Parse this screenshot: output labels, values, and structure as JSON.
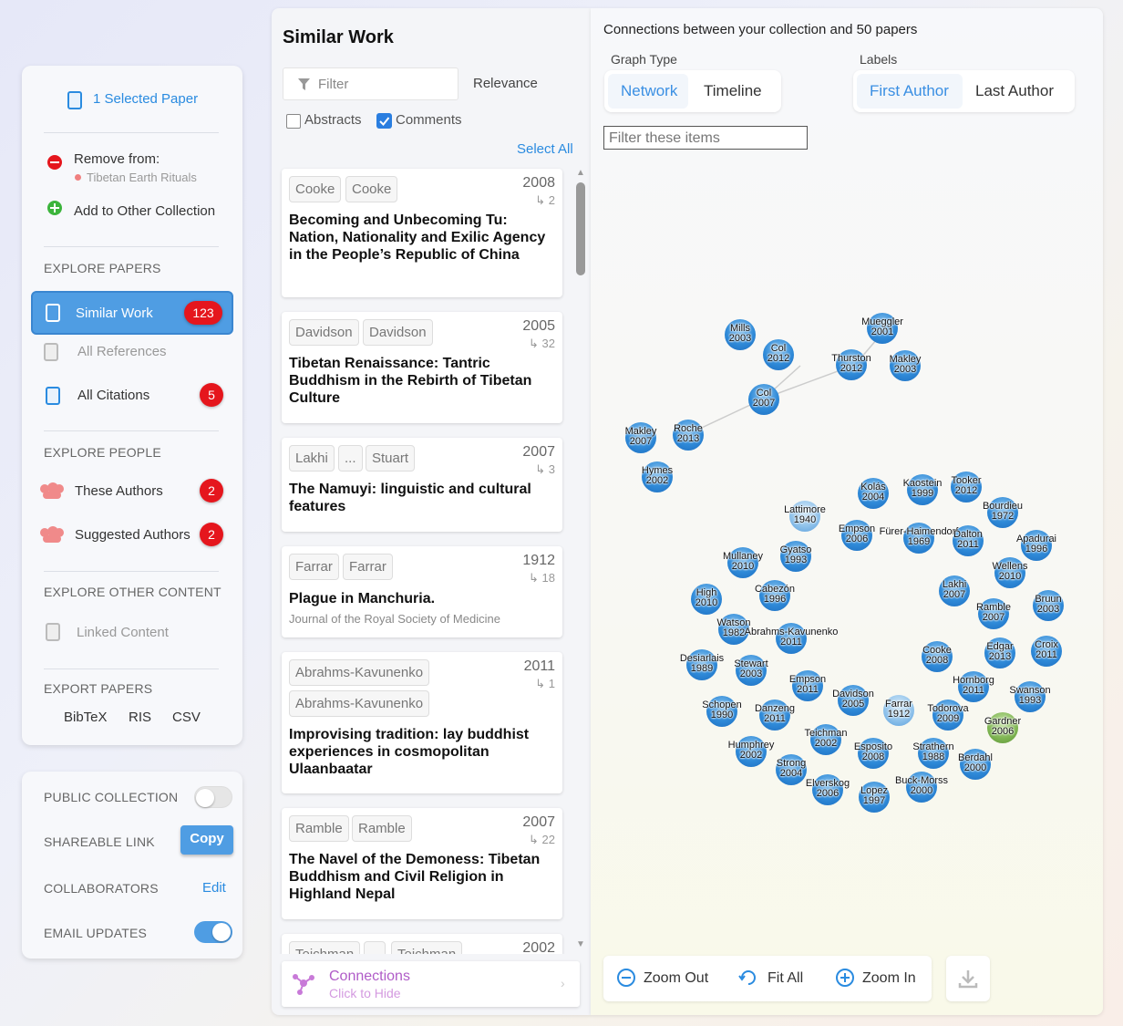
{
  "sidebar": {
    "selected_paper": "1 Selected Paper",
    "remove_from": "Remove from:",
    "collection_name": "Tibetan Earth Rituals",
    "add_to_other": "Add to Other Collection",
    "explore_papers": "EXPLORE PAPERS",
    "similar_work": "Similar Work",
    "similar_work_count": "123",
    "all_references": "All References",
    "all_citations": "All Citations",
    "all_citations_count": "5",
    "explore_people": "EXPLORE PEOPLE",
    "these_authors": "These Authors",
    "these_authors_count": "2",
    "suggested_authors": "Suggested Authors",
    "suggested_authors_count": "2",
    "explore_other": "EXPLORE OTHER CONTENT",
    "linked_content": "Linked Content",
    "export_papers": "EXPORT PAPERS",
    "bibtex": "BibTeX",
    "ris": "RIS",
    "csv": "CSV"
  },
  "settings": {
    "public_collection": "PUBLIC COLLECTION",
    "public_on": false,
    "shareable_link": "SHAREABLE LINK",
    "copy": "Copy",
    "collaborators": "COLLABORATORS",
    "edit": "Edit",
    "email_updates": "EMAIL UPDATES",
    "email_on": true
  },
  "list": {
    "title": "Similar Work",
    "filter_placeholder": "Filter",
    "sort": "Relevance",
    "abstracts": "Abstracts",
    "abstracts_checked": false,
    "comments": "Comments",
    "comments_checked": true,
    "select_all": "Select All",
    "papers": [
      {
        "authors": [
          "Cooke",
          "Cooke"
        ],
        "year": "2008",
        "cites": "2",
        "title": "Becoming and Unbecoming Tu: Nation, Nationality and Exilic Agency in the People’s Republic of China"
      },
      {
        "authors": [
          "Davidson",
          "Davidson"
        ],
        "year": "2005",
        "cites": "32",
        "title": "Tibetan Renaissance: Tantric Buddhism in the Rebirth of Tibetan Culture"
      },
      {
        "authors": [
          "Lakhi",
          "...",
          "Stuart"
        ],
        "year": "2007",
        "cites": "3",
        "title": "The Namuyi: linguistic and cultural features"
      },
      {
        "authors": [
          "Farrar",
          "Farrar"
        ],
        "year": "1912",
        "cites": "18",
        "title": "Plague in Manchuria.",
        "journal": "Journal of the Royal Society of Medicine"
      },
      {
        "authors": [
          "Abrahms-Kavunenko",
          "Abrahms-Kavunenko"
        ],
        "year": "2011",
        "cites": "1",
        "title": "Improvising tradition: lay buddhist experiences in cosmopolitan Ulaanbaatar"
      },
      {
        "authors": [
          "Ramble",
          "Ramble"
        ],
        "year": "2007",
        "cites": "22",
        "title": "The Navel of the Demoness: Tibetan Buddhism and Civil Religion in Highland Nepal"
      },
      {
        "authors": [
          "Teichman",
          "",
          "Teichman"
        ],
        "year": "2002",
        "cites": "",
        "title": ""
      }
    ],
    "connections": "Connections",
    "connections_sub": "Click to Hide"
  },
  "graph": {
    "header": "Connections between your collection and 50 papers",
    "graph_type_label": "Graph Type",
    "network": "Network",
    "timeline": "Timeline",
    "labels_label": "Labels",
    "first_author": "First Author",
    "last_author": "Last Author",
    "filter_placeholder": "Filter these items",
    "zoom_out": "Zoom Out",
    "fit_all": "Fit All",
    "zoom_in": "Zoom In",
    "nodes": [
      {
        "n": "Mills",
        "y": "2003"
      },
      {
        "n": "Col",
        "y": "2012"
      },
      {
        "n": "Mueggler",
        "y": "2001"
      },
      {
        "n": "Thurston",
        "y": "2012"
      },
      {
        "n": "Makley",
        "y": "2003"
      },
      {
        "n": "Col",
        "y": "2007"
      },
      {
        "n": "Makley",
        "y": "2007"
      },
      {
        "n": "Roche",
        "y": "2013"
      },
      {
        "n": "Hymes",
        "y": "2002"
      },
      {
        "n": "Kolás",
        "y": "2004"
      },
      {
        "n": "Kaostein",
        "y": "1999"
      },
      {
        "n": "Tooker",
        "y": "2012"
      },
      {
        "n": "Bourdieu",
        "y": "1972"
      },
      {
        "n": "Lattimore",
        "y": "1940"
      },
      {
        "n": "Empson",
        "y": "2006"
      },
      {
        "n": "Fürer-Haimendorf",
        "y": "1969"
      },
      {
        "n": "Dalton",
        "y": "2011"
      },
      {
        "n": "Apadurai",
        "y": "1996"
      },
      {
        "n": "Mullaney",
        "y": "2010"
      },
      {
        "n": "Gyatso",
        "y": "1993"
      },
      {
        "n": "Wellens",
        "y": "2010"
      },
      {
        "n": "High",
        "y": "2010"
      },
      {
        "n": "Cabezón",
        "y": "1996"
      },
      {
        "n": "Lakhi",
        "y": "2007"
      },
      {
        "n": "Bruun",
        "y": "2003"
      },
      {
        "n": "Ramble",
        "y": "2007"
      },
      {
        "n": "Watson",
        "y": "1982"
      },
      {
        "n": "Abrahms-Kavunenko",
        "y": "2011"
      },
      {
        "n": "Desiarlais",
        "y": "1989"
      },
      {
        "n": "Stewart",
        "y": "2003"
      },
      {
        "n": "Cooke",
        "y": "2008"
      },
      {
        "n": "Edgar",
        "y": "2013"
      },
      {
        "n": "Croix",
        "y": "2011"
      },
      {
        "n": "Empson",
        "y": "2011"
      },
      {
        "n": "Davidson",
        "y": "2005"
      },
      {
        "n": "Hornborg",
        "y": "2011"
      },
      {
        "n": "Swanson",
        "y": "1993"
      },
      {
        "n": "Schopen",
        "y": "1990"
      },
      {
        "n": "Danzeng",
        "y": "2011"
      },
      {
        "n": "Farrar",
        "y": "1912"
      },
      {
        "n": "Todorova",
        "y": "2009"
      },
      {
        "n": "Gardner",
        "y": "2006"
      },
      {
        "n": "Teichman",
        "y": "2002"
      },
      {
        "n": "Humphrey",
        "y": "2002"
      },
      {
        "n": "Esposito",
        "y": "2008"
      },
      {
        "n": "Strathern",
        "y": "1988"
      },
      {
        "n": "Berdahl",
        "y": "2000"
      },
      {
        "n": "Strong",
        "y": "2004"
      },
      {
        "n": "Elverskog",
        "y": "2006"
      },
      {
        "n": "Lopez",
        "y": "1997"
      },
      {
        "n": "Buck-Morss",
        "y": "2000"
      }
    ]
  }
}
